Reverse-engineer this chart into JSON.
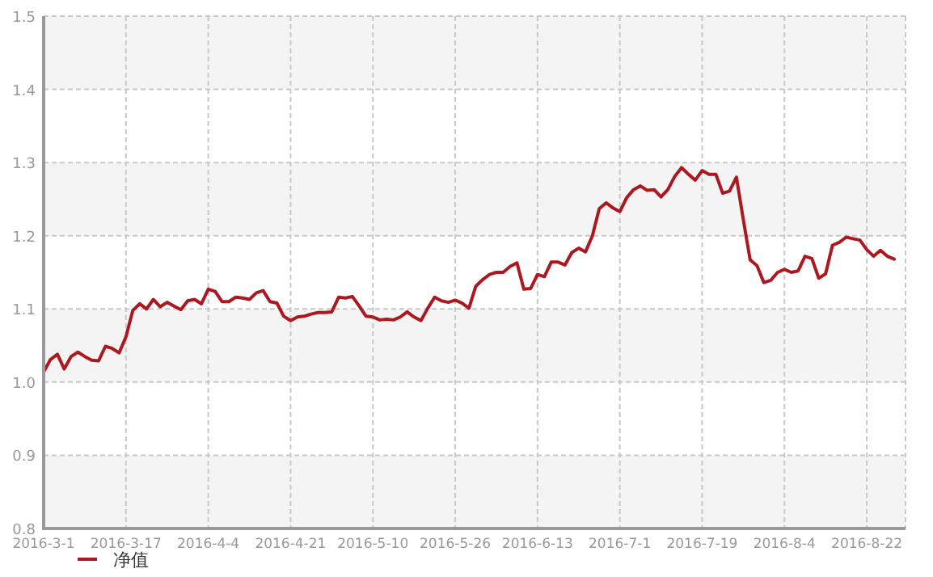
{
  "chart_data": {
    "type": "line",
    "categories": [
      "2016-3-1",
      null,
      null,
      null,
      null,
      null,
      null,
      null,
      null,
      null,
      null,
      null,
      "2016-3-17",
      null,
      null,
      null,
      null,
      null,
      null,
      null,
      null,
      null,
      null,
      null,
      "2016-4-4",
      null,
      null,
      null,
      null,
      null,
      null,
      null,
      null,
      null,
      null,
      null,
      "2016-4-21",
      null,
      null,
      null,
      null,
      null,
      null,
      null,
      null,
      null,
      null,
      null,
      "2016-5-10",
      null,
      null,
      null,
      null,
      null,
      null,
      null,
      null,
      null,
      null,
      null,
      "2016-5-26",
      null,
      null,
      null,
      null,
      null,
      null,
      null,
      null,
      null,
      null,
      null,
      "2016-6-13",
      null,
      null,
      null,
      null,
      null,
      null,
      null,
      null,
      null,
      null,
      null,
      "2016-7-1",
      null,
      null,
      null,
      null,
      null,
      null,
      null,
      null,
      null,
      null,
      null,
      "2016-7-19",
      null,
      null,
      null,
      null,
      null,
      null,
      null,
      null,
      null,
      null,
      null,
      "2016-8-4",
      null,
      null,
      null,
      null,
      null,
      null,
      null,
      null,
      null,
      null,
      null,
      "2016-8-22",
      null,
      null,
      null,
      null
    ],
    "series": [
      {
        "name": "净值",
        "color": "#ac1820",
        "values": [
          1.014,
          1.031,
          1.038,
          1.018,
          1.035,
          1.041,
          1.035,
          1.03,
          1.029,
          1.049,
          1.046,
          1.04,
          1.062,
          1.098,
          1.107,
          1.1,
          1.113,
          1.103,
          1.109,
          1.104,
          1.099,
          1.111,
          1.113,
          1.107,
          1.127,
          1.124,
          1.11,
          1.11,
          1.116,
          1.115,
          1.113,
          1.122,
          1.125,
          1.11,
          1.108,
          1.09,
          1.084,
          1.089,
          1.09,
          1.093,
          1.095,
          1.095,
          1.096,
          1.116,
          1.115,
          1.117,
          1.104,
          1.09,
          1.089,
          1.085,
          1.086,
          1.085,
          1.089,
          1.096,
          1.089,
          1.084,
          1.101,
          1.116,
          1.111,
          1.109,
          1.112,
          1.108,
          1.101,
          1.131,
          1.14,
          1.147,
          1.15,
          1.15,
          1.158,
          1.163,
          1.127,
          1.128,
          1.147,
          1.144,
          1.164,
          1.164,
          1.16,
          1.177,
          1.183,
          1.178,
          1.2,
          1.237,
          1.245,
          1.238,
          1.233,
          1.252,
          1.263,
          1.268,
          1.262,
          1.263,
          1.253,
          1.263,
          1.281,
          1.293,
          1.284,
          1.276,
          1.289,
          1.284,
          1.284,
          1.258,
          1.261,
          1.28,
          1.222,
          1.167,
          1.159,
          1.136,
          1.139,
          1.15,
          1.154,
          1.15,
          1.152,
          1.172,
          1.169,
          1.142,
          1.148,
          1.187,
          1.191,
          1.198,
          1.196,
          1.194,
          1.181,
          1.172,
          1.18,
          1.172,
          1.168
        ]
      }
    ],
    "ylim": [
      0.8,
      1.5
    ],
    "yticks": [
      0.8,
      0.9,
      {
        "value": 1,
        "label": "1.0"
      },
      1.1,
      1.2,
      1.3,
      1.4,
      1.5
    ],
    "grid": true,
    "legend": "bottom left"
  }
}
